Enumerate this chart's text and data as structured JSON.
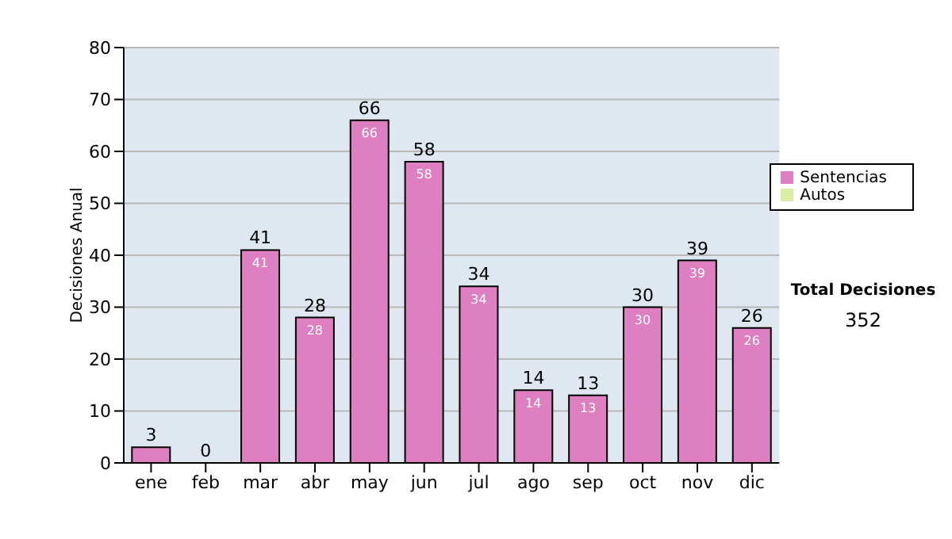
{
  "chart_data": {
    "type": "bar",
    "ylabel": "Decisiones Anual",
    "categories": [
      "ene",
      "feb",
      "mar",
      "abr",
      "may",
      "jun",
      "jul",
      "ago",
      "sep",
      "oct",
      "nov",
      "dic"
    ],
    "series": [
      {
        "name": "Sentencias",
        "color": "#dd7fc0",
        "values": [
          3,
          0,
          41,
          28,
          66,
          58,
          34,
          14,
          13,
          30,
          39,
          26
        ],
        "value_labels": [
          null,
          null,
          "41",
          "28",
          "66",
          "58",
          "34",
          "14",
          "13",
          "30",
          "39",
          "26"
        ]
      },
      {
        "name": "Autos",
        "color": "#d9eea2",
        "values": [
          0,
          0,
          0,
          0,
          0,
          0,
          0,
          0,
          0,
          0,
          0,
          0
        ]
      }
    ],
    "stacked": true,
    "totals": [
      "3",
      "0",
      "41",
      "28",
      "66",
      "58",
      "34",
      "14",
      "13",
      "30",
      "39",
      "26"
    ],
    "ylim": [
      0,
      80
    ],
    "yticks": [
      0,
      10,
      20,
      30,
      40,
      50,
      60,
      70,
      80
    ],
    "grid": "y",
    "legend": "right",
    "annotations": [
      "Total Decisiones",
      "352"
    ]
  }
}
